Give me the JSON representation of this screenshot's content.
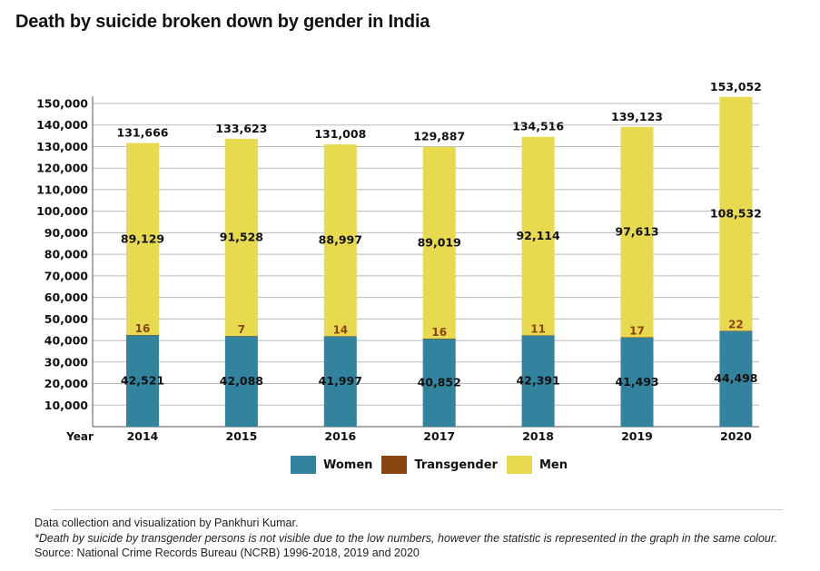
{
  "title": "Death by suicide broken down by gender in India",
  "chart_data": {
    "type": "bar",
    "stacked": true,
    "x_axis_label": "Year",
    "categories": [
      "2014",
      "2015",
      "2016",
      "2017",
      "2018",
      "2019",
      "2020"
    ],
    "series": [
      {
        "name": "Women",
        "color": "#31839e",
        "values": [
          42521,
          42088,
          41997,
          40852,
          42391,
          41493,
          44498
        ],
        "labels": [
          "42,521",
          "42,088",
          "41,997",
          "40,852",
          "42,391",
          "41,493",
          "44,498"
        ]
      },
      {
        "name": "Transgender",
        "color": "#8b4513",
        "values": [
          16,
          7,
          14,
          16,
          11,
          17,
          22
        ],
        "labels": [
          "16",
          "7",
          "14",
          "16",
          "11",
          "17",
          "22"
        ]
      },
      {
        "name": "Men",
        "color": "#e8da4f",
        "values": [
          89129,
          91528,
          88997,
          89019,
          92114,
          97613,
          108532
        ],
        "labels": [
          "89,129",
          "91,528",
          "88,997",
          "89,019",
          "92,114",
          "97,613",
          "108,532"
        ]
      }
    ],
    "totals": [
      "131,666",
      "133,623",
      "131,008",
      "129,887",
      "134,516",
      "139,123",
      "153,052"
    ],
    "y_ticks": [
      "10,000",
      "20,000",
      "30,000",
      "40,000",
      "50,000",
      "60,000",
      "70,000",
      "80,000",
      "90,000",
      "100,000",
      "110,000",
      "120,000",
      "130,000",
      "140,000",
      "150,000"
    ],
    "ylim": [
      0,
      150000
    ],
    "grid": true,
    "legend_position": "bottom-center"
  },
  "legend": [
    {
      "label": "Women",
      "color": "#31839e"
    },
    {
      "label": "Transgender",
      "color": "#8b4513"
    },
    {
      "label": "Men",
      "color": "#e8da4f"
    }
  ],
  "footer": {
    "credit": "Data collection and visualization by Pankhuri Kumar.",
    "note": "*Death by suicide by transgender persons is not visible due to the low numbers, however the statistic is represented in the graph in the same colour.",
    "source": "Source: National Crime Records Bureau (NCRB) 1996-2018, 2019 and 2020"
  }
}
